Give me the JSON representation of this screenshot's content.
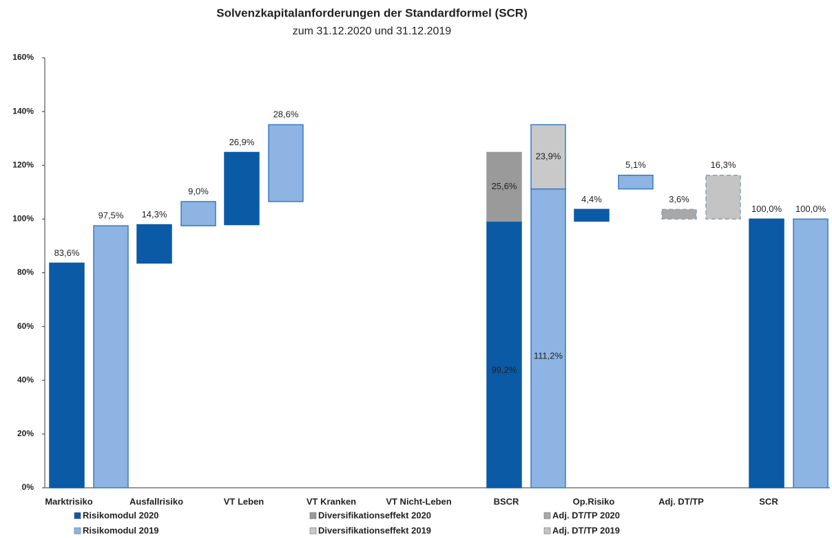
{
  "chart_data": {
    "type": "waterfall",
    "title": "Solvenzkapitalanforderungen der Standardformel (SCR)",
    "subtitle": "zum 31.12.2020 und 31.12.2019",
    "categories": [
      "Marktrisiko",
      "Ausfallrisiko",
      "VT Leben",
      "VT Kranken",
      "VT Nicht-Leben",
      "BSCR",
      "Op.Risiko",
      "Adj. DT/TP",
      "SCR"
    ],
    "is_total": [
      false,
      false,
      false,
      false,
      false,
      true,
      false,
      false,
      true
    ],
    "series": [
      {
        "name": "Risikomodul 2020",
        "color": "#0b5aa6",
        "values": [
          83.6,
          14.3,
          26.9,
          null,
          null,
          99.2,
          4.4,
          null,
          100
        ],
        "value_labels": [
          "83,6%",
          "14,3%",
          "26,9%",
          null,
          null,
          "99,2%",
          "4,4%",
          null,
          "100,0%"
        ]
      },
      {
        "name": "Diversifikationseffekt 2020",
        "color": "#9a9a9a",
        "values": [
          null,
          null,
          null,
          null,
          null,
          -25.6,
          null,
          null,
          null
        ],
        "value_labels": [
          null,
          null,
          null,
          null,
          null,
          "25,6%",
          null,
          null,
          null
        ]
      },
      {
        "name": "Adj. DT/TP 2020",
        "color": "#a8a8a8",
        "dashed": true,
        "values": [
          null,
          null,
          null,
          null,
          null,
          null,
          null,
          -3.6,
          null
        ],
        "value_labels": [
          null,
          null,
          null,
          null,
          null,
          null,
          null,
          "3,6%",
          null
        ]
      },
      {
        "name": "Risikomodul 2019",
        "color": "#8db4e2",
        "values": [
          97.5,
          9.0,
          28.6,
          null,
          null,
          111.2,
          5.1,
          null,
          100
        ],
        "value_labels": [
          "97,5%",
          "9,0%",
          "28,6%",
          null,
          null,
          "111,2%",
          "5,1%",
          null,
          "100,0%"
        ]
      },
      {
        "name": "Diversifikationseffekt 2019",
        "color": "#c9c9c9",
        "values": [
          null,
          null,
          null,
          null,
          null,
          -23.9,
          null,
          null,
          null
        ],
        "value_labels": [
          null,
          null,
          null,
          null,
          null,
          "23,9%",
          null,
          null,
          null
        ]
      },
      {
        "name": "Adj. DT/TP 2019",
        "color": "#c4c4c4",
        "dashed": true,
        "values": [
          null,
          null,
          null,
          null,
          null,
          null,
          null,
          -16.3,
          null
        ],
        "value_labels": [
          null,
          null,
          null,
          null,
          null,
          null,
          null,
          "16,3%",
          null
        ]
      }
    ],
    "ylim": [
      0,
      160
    ],
    "yticks": [
      {
        "value": 0,
        "label": "0%"
      },
      {
        "value": 20,
        "label": "20%"
      },
      {
        "value": 40,
        "label": "40%"
      },
      {
        "value": 60,
        "label": "60%"
      },
      {
        "value": 80,
        "label": "80%"
      },
      {
        "value": 100,
        "label": "100%"
      },
      {
        "value": 120,
        "label": "120%"
      },
      {
        "value": 140,
        "label": "140%"
      },
      {
        "value": 160,
        "label": "160%"
      }
    ],
    "grid": false
  }
}
